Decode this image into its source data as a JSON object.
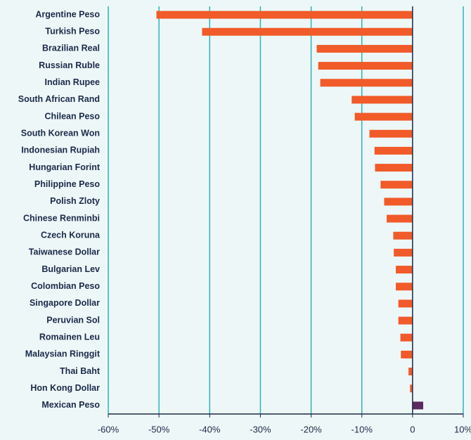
{
  "chart_data": {
    "type": "barh",
    "categories": [
      "Argentine Peso",
      "Turkish Peso",
      "Brazilian Real",
      "Russian Ruble",
      "Indian Rupee",
      "South African Rand",
      "Chilean Peso",
      "South Korean Won",
      "Indonesian Rupiah",
      "Hungarian Forint",
      "Philippine Peso",
      "Polish Zloty",
      "Chinese Renminbi",
      "Czech Koruna",
      "Taiwanese Dollar",
      "Bulgarian Lev",
      "Colombian Peso",
      "Singapore Dollar",
      "Peruvian Sol",
      "Romainen Leu",
      "Malaysian Ringgit",
      "Thai Baht",
      "Hon Kong Dollar",
      "Mexican Peso"
    ],
    "values": [
      -50.5,
      -41.5,
      -18.9,
      -18.6,
      -18.2,
      -12.0,
      -11.4,
      -8.5,
      -7.5,
      -7.4,
      -6.3,
      -5.6,
      -5.1,
      -3.8,
      -3.7,
      -3.3,
      -3.3,
      -2.8,
      -2.8,
      -2.4,
      -2.3,
      -0.8,
      -0.5,
      2.1
    ],
    "color": "#f15a29",
    "positive_color": "#5b2a5e",
    "xlim": [
      -60,
      10
    ],
    "xticks": [
      {
        "value": -60,
        "label": "-60%"
      },
      {
        "value": -50,
        "label": "-50%"
      },
      {
        "value": -40,
        "label": "-40%"
      },
      {
        "value": -30,
        "label": "-30%"
      },
      {
        "value": -20,
        "label": "-20%"
      },
      {
        "value": -10,
        "label": "-10%"
      },
      {
        "value": 0,
        "label": "0"
      },
      {
        "value": 10,
        "label": "10%"
      }
    ],
    "grid": true,
    "grid_color": "#2bb5b5"
  }
}
